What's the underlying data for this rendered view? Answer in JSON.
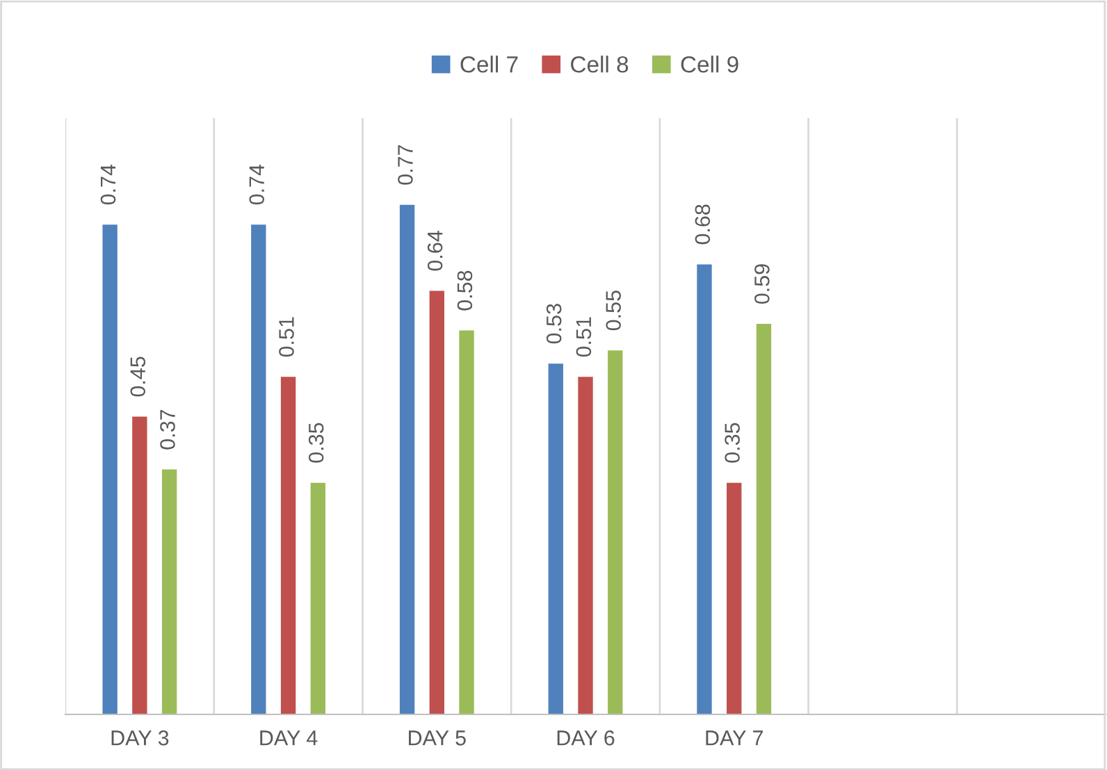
{
  "chart_data": {
    "type": "bar",
    "categories": [
      "DAY 3",
      "DAY 4",
      "DAY 5",
      "DAY 6",
      "DAY 7",
      null,
      null
    ],
    "series": [
      {
        "name": "Cell 7",
        "color": "#4f81bd",
        "values": [
          0.74,
          0.74,
          0.77,
          0.53,
          0.68,
          null,
          null
        ]
      },
      {
        "name": "Cell 8",
        "color": "#c0504d",
        "values": [
          0.45,
          0.51,
          0.64,
          0.51,
          0.35,
          null,
          null
        ]
      },
      {
        "name": "Cell 9",
        "color": "#9bbb59",
        "values": [
          0.37,
          0.35,
          0.58,
          0.55,
          0.59,
          null,
          null
        ]
      }
    ],
    "data_labels": true,
    "grid": "x",
    "legend": "top"
  }
}
